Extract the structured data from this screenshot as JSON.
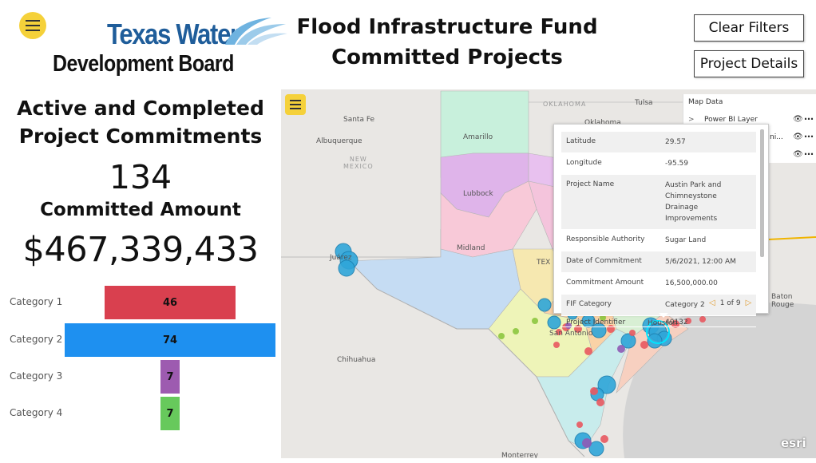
{
  "header": {
    "logo_top": "Texas Water",
    "logo_bottom": "Development Board",
    "title_line1": "Flood Infrastructure Fund",
    "title_line2": "Committed Projects",
    "clear_filters": "Clear Filters",
    "project_details": "Project Details"
  },
  "kpi": {
    "heading_line1": "Active and Completed",
    "heading_line2": "Project Commitments",
    "count": "134",
    "amount_label": "Committed Amount",
    "amount": "$467,339,433"
  },
  "funnel": {
    "items": [
      {
        "category": "Category 1",
        "value": 46,
        "color": "#d9404f"
      },
      {
        "category": "Category 2",
        "value": 74,
        "color": "#1e90f0"
      },
      {
        "category": "Category 3",
        "value": 7,
        "color": "#9d5bb0"
      },
      {
        "category": "Category 4",
        "value": 7,
        "color": "#67c95c"
      }
    ]
  },
  "map": {
    "places": {
      "oklahoma": "OKLAHOMA",
      "tulsa": "Tulsa",
      "oklahoma_city": "Oklahoma",
      "santa_fe": "Santa Fe",
      "albuquerque": "Albuquerque",
      "new_mexico_1": "NEW",
      "new_mexico_2": "MEXICO",
      "amarillo": "Amarillo",
      "lubbock": "Lubbock",
      "midland": "Midland",
      "juarez": "Juárez",
      "chihuahua": "Chihuahua",
      "san_antonio": "San Antonio",
      "houston": "Houston",
      "baton_rouge_1": "Baton",
      "baton_rouge_2": "Rouge",
      "monterrey": "Monterrey",
      "texas_partial": "TEX"
    },
    "layers": {
      "title": "Map Data",
      "items": [
        "Power BI Layer",
        "ni...",
        ""
      ]
    },
    "popup": {
      "rows": [
        {
          "key": "Latitude",
          "value": "29.57"
        },
        {
          "key": "Longitude",
          "value": "-95.59"
        },
        {
          "key": "Project Name",
          "value": "Austin Park and Chimneystone Drainage Improvements"
        },
        {
          "key": "Responsible Authority",
          "value": "Sugar Land"
        },
        {
          "key": "Date of Commitment",
          "value": "5/6/2021, 12:00 AM"
        },
        {
          "key": "Commitment Amount",
          "value": "16,500,000.00"
        },
        {
          "key": "FIF Category",
          "value": "Category 2"
        },
        {
          "key": "Project Identifier",
          "value": "40132"
        }
      ],
      "pager": "1 of 9"
    },
    "attribution": "esri",
    "colors": {
      "cat1": "#e8585f",
      "cat2": "#2fa6d9",
      "cat3": "#8e5bb5",
      "cat4": "#8cc63f"
    }
  }
}
